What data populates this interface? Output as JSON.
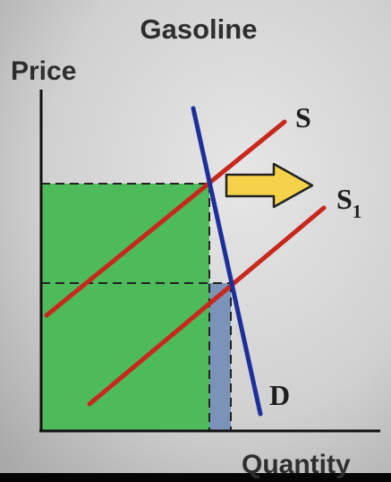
{
  "title": "Gasoline",
  "y_axis_label": "Price",
  "x_axis_label": "Quantity",
  "curves": {
    "supply_label": "S",
    "supply_shifted_label": "S",
    "supply_shifted_subscript": "1",
    "demand_label": "D"
  },
  "colors": {
    "background": "#cfcfcf",
    "supply": "#c8281c",
    "demand": "#1c2f9a",
    "revenue_fill": "#4dbb5a",
    "quantity_band": "#7b93b8",
    "arrow_fill": "#f5d24a",
    "arrow_stroke": "#222222"
  },
  "icons": {
    "shift_arrow": "arrow-right-icon"
  }
}
